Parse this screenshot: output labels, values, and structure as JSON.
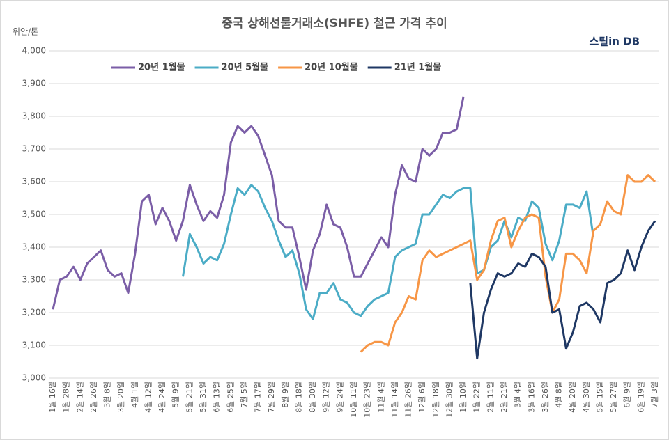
{
  "chart_data": {
    "type": "line",
    "title": "중국 상해선물거래소(SHFE) 철근 가격 추이",
    "y_label": "위안/톤",
    "logo": "스틸in DB",
    "categories": [
      "1월 16일",
      null,
      "1월 28일",
      null,
      "2월 14일",
      null,
      "2월 26일",
      null,
      "3월 8일",
      null,
      "3월 20일",
      null,
      "4월 1일",
      null,
      "4월 12일",
      null,
      "4월 24일",
      null,
      "5월 9일",
      null,
      "5월 21일",
      null,
      "5월 31일",
      null,
      "6월 13일",
      null,
      "6월 25일",
      null,
      "7월 5일",
      null,
      "7월 17일",
      null,
      "7월 29일",
      null,
      "8월 9일",
      null,
      "8월 18일",
      null,
      "8월 30일",
      null,
      "9월 12일",
      null,
      "9월 24일",
      null,
      "10월 11일",
      null,
      "10월 23일",
      null,
      "11월 4일",
      null,
      "11월 14일",
      null,
      "11월 26일",
      null,
      "12월 6일",
      null,
      "12월 18일",
      null,
      "12월 30일",
      null,
      "1월 10일",
      null,
      "1월 22일",
      null,
      "2월 11일",
      null,
      "2월 21일",
      null,
      "3월 4일",
      null,
      "3월 16일",
      null,
      "3월 26일",
      null,
      "4월 8일",
      null,
      "4월 20일",
      null,
      "4월 30일",
      null,
      "5월 15일",
      null,
      "5월 27일",
      null,
      "6월 9일",
      null,
      "6월 19일",
      null,
      "7월 3일"
    ],
    "series": [
      {
        "name": "20년 1월물",
        "color": "#7b5ea7",
        "values": [
          3210,
          3300,
          3310,
          3340,
          3300,
          3350,
          3370,
          3390,
          3330,
          3310,
          3320,
          3260,
          3380,
          3540,
          3560,
          3470,
          3520,
          3480,
          3420,
          3480,
          3590,
          3530,
          3480,
          3510,
          3490,
          3560,
          3720,
          3770,
          3750,
          3770,
          3740,
          3680,
          3620,
          3480,
          3460,
          3460,
          3370,
          3270,
          3390,
          3440,
          3530,
          3470,
          3460,
          3400,
          3310,
          3310,
          3350,
          3390,
          3430,
          3400,
          3560,
          3650,
          3610,
          3600,
          3700,
          3680,
          3700,
          3750,
          3750,
          3760,
          3860,
          null,
          null,
          null,
          null,
          null,
          null,
          null,
          null,
          null,
          null,
          null,
          null,
          null,
          null,
          null,
          null,
          null,
          null,
          null,
          null,
          null,
          null,
          null,
          null,
          null,
          null,
          null,
          null
        ]
      },
      {
        "name": "20년 5월물",
        "color": "#4bacc6",
        "values": [
          null,
          null,
          null,
          null,
          null,
          null,
          null,
          null,
          null,
          null,
          null,
          null,
          null,
          null,
          null,
          null,
          null,
          null,
          null,
          3310,
          3440,
          3400,
          3350,
          3370,
          3360,
          3410,
          3500,
          3580,
          3560,
          3590,
          3570,
          3520,
          3480,
          3420,
          3370,
          3390,
          3320,
          3210,
          3180,
          3260,
          3260,
          3290,
          3240,
          3230,
          3200,
          3190,
          3220,
          3240,
          3250,
          3260,
          3370,
          3390,
          3400,
          3410,
          3500,
          3500,
          3530,
          3560,
          3550,
          3570,
          3580,
          3580,
          3320,
          3330,
          3400,
          3420,
          3480,
          3430,
          3490,
          3480,
          3540,
          3520,
          3410,
          3360,
          3420,
          3530,
          3530,
          3520,
          3570,
          3430,
          null,
          null,
          null,
          null,
          null,
          null,
          null,
          null,
          null
        ]
      },
      {
        "name": "20년 10월물",
        "color": "#f79646",
        "values": [
          null,
          null,
          null,
          null,
          null,
          null,
          null,
          null,
          null,
          null,
          null,
          null,
          null,
          null,
          null,
          null,
          null,
          null,
          null,
          null,
          null,
          null,
          null,
          null,
          null,
          null,
          null,
          null,
          null,
          null,
          null,
          null,
          null,
          null,
          null,
          null,
          null,
          null,
          null,
          null,
          null,
          null,
          null,
          null,
          null,
          3080,
          3100,
          3110,
          3110,
          3100,
          3170,
          3200,
          3250,
          3240,
          3360,
          3390,
          3370,
          3380,
          3390,
          3400,
          3410,
          3420,
          3300,
          3330,
          3420,
          3480,
          3490,
          3400,
          3450,
          3490,
          3500,
          3490,
          3310,
          3200,
          3240,
          3380,
          3380,
          3360,
          3320,
          3450,
          3470,
          3540,
          3510,
          3500,
          3620,
          3600,
          3600,
          3620,
          3600
        ]
      },
      {
        "name": "21년 1월물",
        "color": "#1f3864",
        "values": [
          null,
          null,
          null,
          null,
          null,
          null,
          null,
          null,
          null,
          null,
          null,
          null,
          null,
          null,
          null,
          null,
          null,
          null,
          null,
          null,
          null,
          null,
          null,
          null,
          null,
          null,
          null,
          null,
          null,
          null,
          null,
          null,
          null,
          null,
          null,
          null,
          null,
          null,
          null,
          null,
          null,
          null,
          null,
          null,
          null,
          null,
          null,
          null,
          null,
          null,
          null,
          null,
          null,
          null,
          null,
          null,
          null,
          null,
          null,
          null,
          null,
          3290,
          3060,
          3200,
          3270,
          3320,
          3310,
          3320,
          3350,
          3340,
          3380,
          3370,
          3340,
          3200,
          3210,
          3090,
          3140,
          3220,
          3230,
          3210,
          3170,
          3290,
          3300,
          3320,
          3390,
          3330,
          3400,
          3450,
          3480
        ]
      }
    ],
    "ylim": [
      3000,
      4000
    ],
    "yticks": [
      {
        "value": 3000,
        "label": "3,000"
      },
      {
        "value": 3100,
        "label": "3,100"
      },
      {
        "value": 3200,
        "label": "3,200"
      },
      {
        "value": 3300,
        "label": "3,300"
      },
      {
        "value": 3400,
        "label": "3,400"
      },
      {
        "value": 3500,
        "label": "3,500"
      },
      {
        "value": 3600,
        "label": "3,600"
      },
      {
        "value": 3700,
        "label": "3,700"
      },
      {
        "value": 3800,
        "label": "3,800"
      },
      {
        "value": 3900,
        "label": "3,900"
      },
      {
        "value": 4000,
        "label": "4,000"
      }
    ],
    "grid": true
  }
}
